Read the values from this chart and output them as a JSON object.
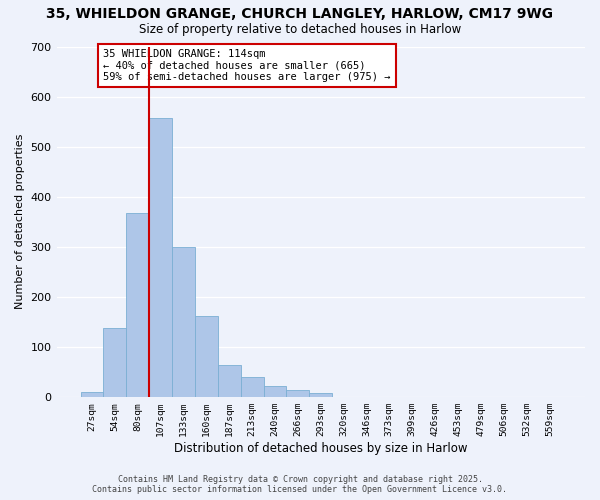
{
  "title": "35, WHIELDON GRANGE, CHURCH LANGLEY, HARLOW, CM17 9WG",
  "subtitle": "Size of property relative to detached houses in Harlow",
  "xlabel": "Distribution of detached houses by size in Harlow",
  "ylabel": "Number of detached properties",
  "categories": [
    "27sqm",
    "54sqm",
    "80sqm",
    "107sqm",
    "133sqm",
    "160sqm",
    "187sqm",
    "213sqm",
    "240sqm",
    "266sqm",
    "293sqm",
    "320sqm",
    "346sqm",
    "373sqm",
    "399sqm",
    "426sqm",
    "453sqm",
    "479sqm",
    "506sqm",
    "532sqm",
    "559sqm"
  ],
  "values": [
    10,
    138,
    367,
    557,
    299,
    161,
    65,
    40,
    23,
    14,
    8,
    0,
    0,
    0,
    0,
    0,
    0,
    0,
    0,
    0,
    0
  ],
  "bar_color": "#aec6e8",
  "bar_edge_color": "#7bafd4",
  "vline_color": "#cc0000",
  "vline_x_index": 3,
  "annotation_lines": [
    "35 WHIELDON GRANGE: 114sqm",
    "← 40% of detached houses are smaller (665)",
    "59% of semi-detached houses are larger (975) →"
  ],
  "annotation_box_color": "#ffffff",
  "annotation_box_edge_color": "#cc0000",
  "ylim": [
    0,
    700
  ],
  "yticks": [
    0,
    100,
    200,
    300,
    400,
    500,
    600,
    700
  ],
  "background_color": "#eef2fb",
  "grid_color": "#ffffff",
  "footer_line1": "Contains HM Land Registry data © Crown copyright and database right 2025.",
  "footer_line2": "Contains public sector information licensed under the Open Government Licence v3.0."
}
